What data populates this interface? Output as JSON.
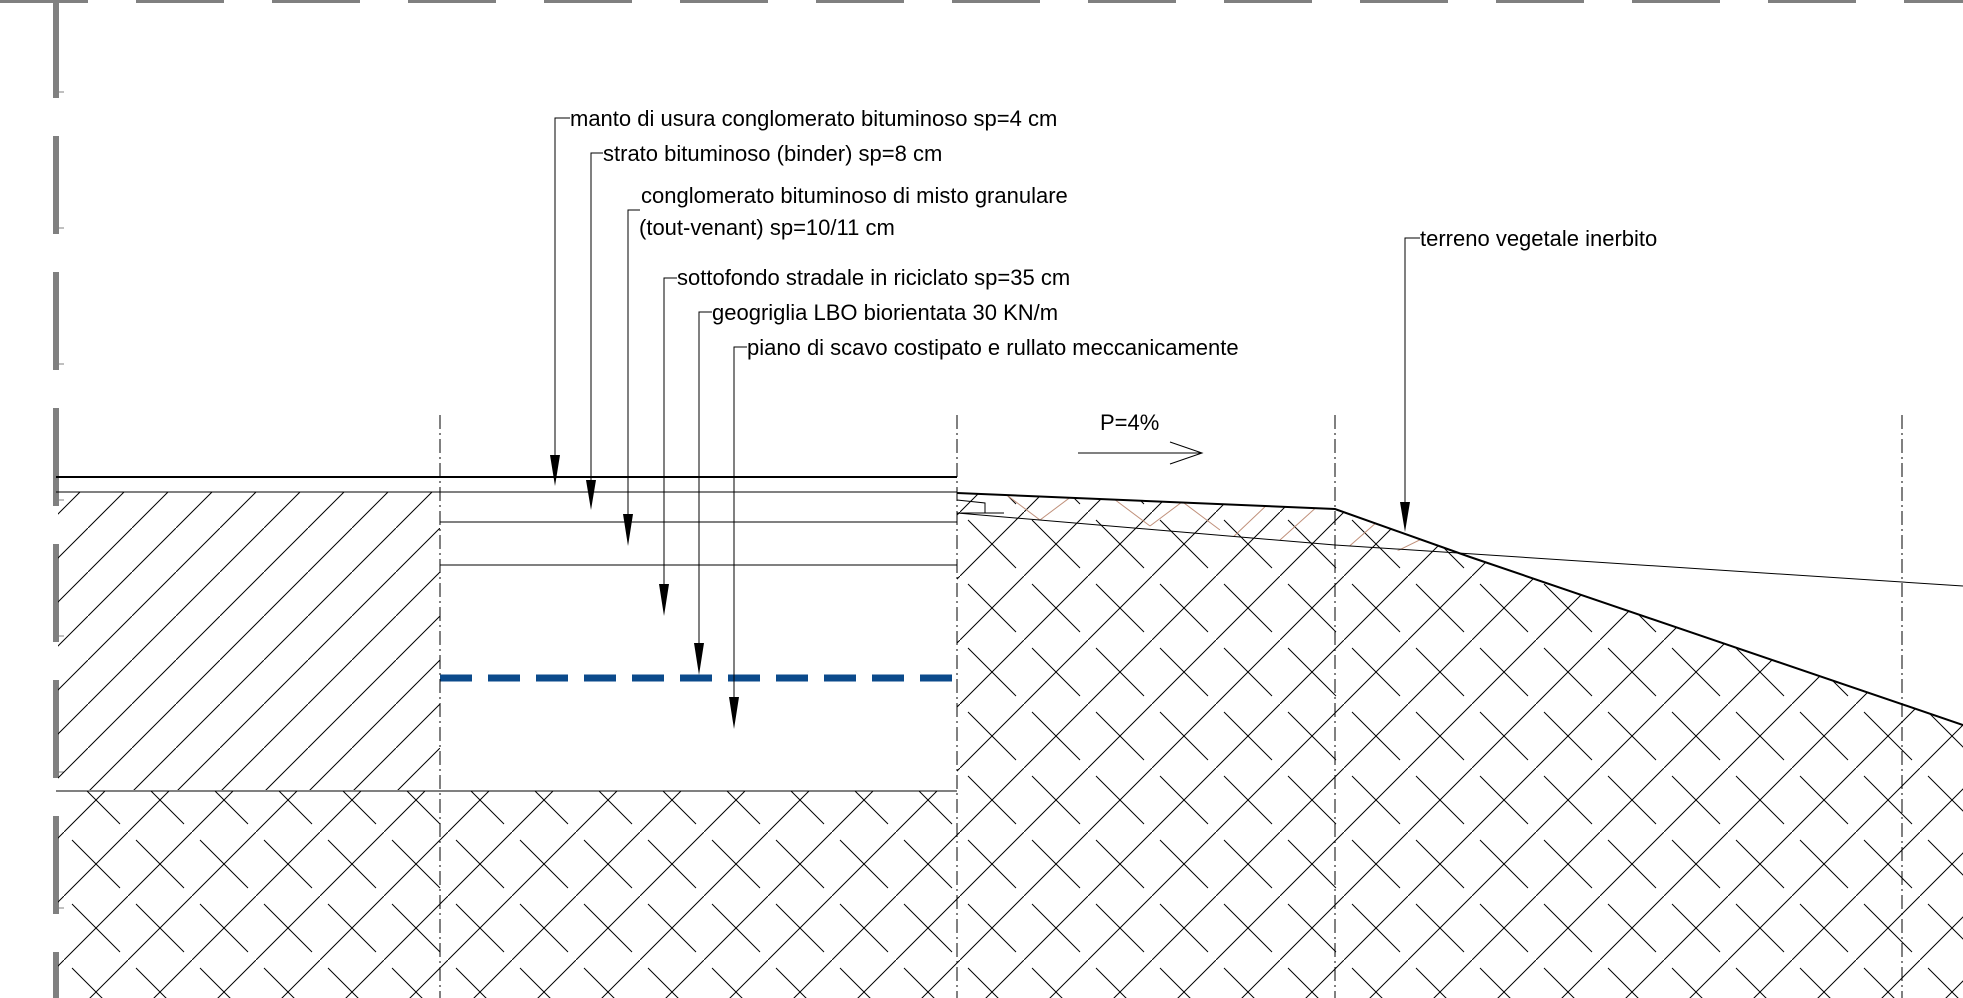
{
  "labels": {
    "manto": "manto di usura conglomerato bituminoso sp=4 cm",
    "strato": "strato bituminoso (binder) sp=8 cm",
    "conglomerato_1": "conglomerato bituminoso di misto granulare",
    "conglomerato_2": "(tout-venant)  sp=10/11 cm",
    "sottofondo": "sottofondo stradale in riciclato sp=35 cm",
    "geogriglia": "geogriglia LBO biorientata 30 KN/m",
    "piano": "piano di scavo costipato e rullato meccanicamente",
    "terreno": "terreno vegetale inerbito",
    "slope": "P=4%"
  },
  "colors": {
    "line": "#000000",
    "geogrid": "#0b4a8b",
    "topsoil_hatch": "#c0907a",
    "frame": "#808080"
  }
}
